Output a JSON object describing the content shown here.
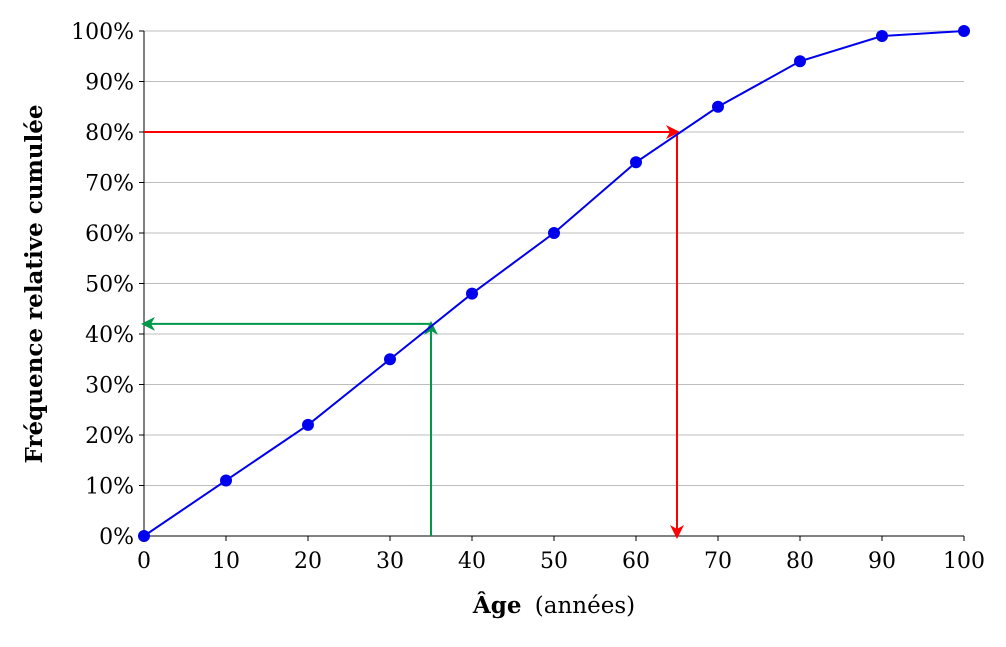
{
  "chart_data": {
    "type": "line",
    "title": "",
    "xlabel_main": "Âge",
    "xlabel_sub": "(années)",
    "ylabel": "Fréquence relative cumulée",
    "xlim": [
      0,
      100
    ],
    "ylim": [
      0,
      100
    ],
    "x_ticks": [
      "0",
      "10",
      "20",
      "30",
      "40",
      "50",
      "60",
      "70",
      "80",
      "90",
      "100"
    ],
    "y_ticks": [
      "0%",
      "10%",
      "20%",
      "30%",
      "40%",
      "50%",
      "60%",
      "70%",
      "80%",
      "90%",
      "100%"
    ],
    "grid": "horizontal",
    "series": [
      {
        "x": [
          0,
          10,
          20,
          30,
          40,
          50,
          60,
          70,
          80,
          90,
          100
        ],
        "y": [
          0,
          11,
          22,
          35,
          48,
          60,
          74,
          85,
          94,
          99,
          100
        ],
        "color": "#0000ee"
      }
    ],
    "annotations": [
      {
        "kind": "median-reading",
        "color": "#00994c",
        "path": [
          [
            35,
            0
          ],
          [
            35,
            42
          ],
          [
            0,
            42
          ]
        ]
      },
      {
        "kind": "percentile-reading",
        "color": "#ff0000",
        "path": [
          [
            0,
            80
          ],
          [
            65,
            80
          ],
          [
            65,
            0
          ]
        ]
      }
    ]
  }
}
